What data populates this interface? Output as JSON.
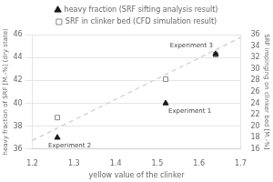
{
  "chart_data": {
    "type": "scatter",
    "xlabel": "yellow value of the clinker",
    "ylabel": "heavy fraction of SRF [M.-%] (dry state)",
    "y2label": "SRF impinging on clinker bed [M.-%]",
    "xlim": [
      1.2,
      1.7
    ],
    "xticks": [
      1.2,
      1.3,
      1.4,
      1.5,
      1.6,
      1.7
    ],
    "ylim": [
      36,
      46
    ],
    "yticks": [
      36,
      38,
      40,
      42,
      44,
      46
    ],
    "y2lim": [
      16,
      36
    ],
    "y2ticks": [
      16,
      18,
      20,
      22,
      24,
      26,
      28,
      30,
      32,
      34,
      36
    ],
    "grid": true,
    "legend": "top",
    "series": [
      {
        "name": "heavy fraction (SRF sifting analysis result)",
        "type": "scatter",
        "marker": "triangle",
        "color": "#1a1a1a",
        "x": [
          1.26,
          1.52,
          1.64
        ],
        "values": [
          37.0,
          40.0,
          44.3
        ]
      },
      {
        "name": "SRF in clinker bed (CFD simulation result)",
        "type": "scatter",
        "marker": "square",
        "color": "#888888",
        "axis": "y2",
        "x": [
          1.26,
          1.52,
          1.64
        ],
        "values": [
          21.5,
          28.2,
          32.5
        ]
      },
      {
        "type": "line",
        "line_style": "dashed",
        "color": "#cccccc",
        "axis": "y2",
        "x": [
          1.2,
          1.7
        ],
        "values": [
          17.5,
          35.5
        ]
      }
    ],
    "annotations": [
      {
        "text": "Experiment 2",
        "x": 1.26,
        "y": 37.0
      },
      {
        "text": "Experiment 1",
        "x": 1.52,
        "y": 40.0
      },
      {
        "text": "Experiment 3",
        "x": 1.64,
        "y": 32.5,
        "axis": "y2"
      }
    ]
  }
}
